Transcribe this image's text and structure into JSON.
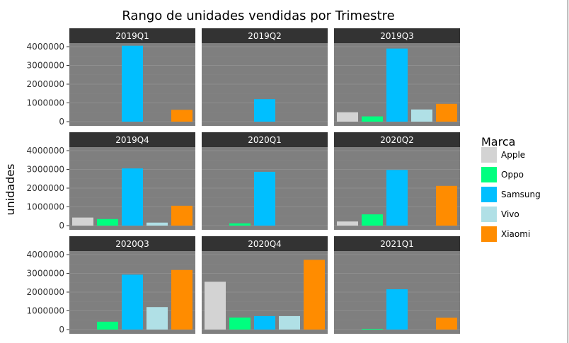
{
  "chart_data": {
    "type": "bar",
    "title": "Rango de unidades vendidas por Trimestre",
    "xlabel": "",
    "ylabel": "unidades",
    "facet_layout": "3x3 grid",
    "facets": [
      "2019Q1",
      "2019Q2",
      "2019Q3",
      "2019Q4",
      "2020Q1",
      "2020Q2",
      "2020Q3",
      "2020Q4",
      "2021Q1"
    ],
    "categories": [
      "Apple",
      "Oppo",
      "Samsung",
      "Vivo",
      "Xiaomi"
    ],
    "colors": {
      "Apple": "#d3d3d3",
      "Oppo": "#00ff7f",
      "Samsung": "#00bfff",
      "Vivo": "#b0e0e6",
      "Xiaomi": "#ff8c00"
    },
    "values": {
      "2019Q1": [
        0,
        0,
        4050000,
        0,
        630000
      ],
      "2019Q2": [
        0,
        0,
        1200000,
        0,
        0
      ],
      "2019Q3": [
        500000,
        280000,
        3900000,
        650000,
        950000
      ],
      "2019Q4": [
        430000,
        350000,
        3050000,
        160000,
        1060000
      ],
      "2020Q1": [
        0,
        120000,
        2870000,
        0,
        0
      ],
      "2020Q2": [
        220000,
        600000,
        2970000,
        0,
        2120000
      ],
      "2020Q3": [
        0,
        420000,
        2930000,
        1200000,
        3180000
      ],
      "2020Q4": [
        2550000,
        640000,
        720000,
        720000,
        3720000
      ],
      "2021Q1": [
        0,
        40000,
        2150000,
        0,
        630000
      ]
    },
    "ylim": [
      0,
      4250000
    ],
    "yticks": [
      0,
      1000000,
      2000000,
      3000000,
      4000000
    ],
    "ytick_labels": [
      "0",
      "1000000",
      "2000000",
      "3000000",
      "4000000"
    ],
    "legend": {
      "title": "Marca",
      "entries": [
        "Apple",
        "Oppo",
        "Samsung",
        "Vivo",
        "Xiaomi"
      ],
      "position": "right"
    },
    "grid": true,
    "panel_background": "#7f7f7f",
    "strip_background": "#333333"
  }
}
